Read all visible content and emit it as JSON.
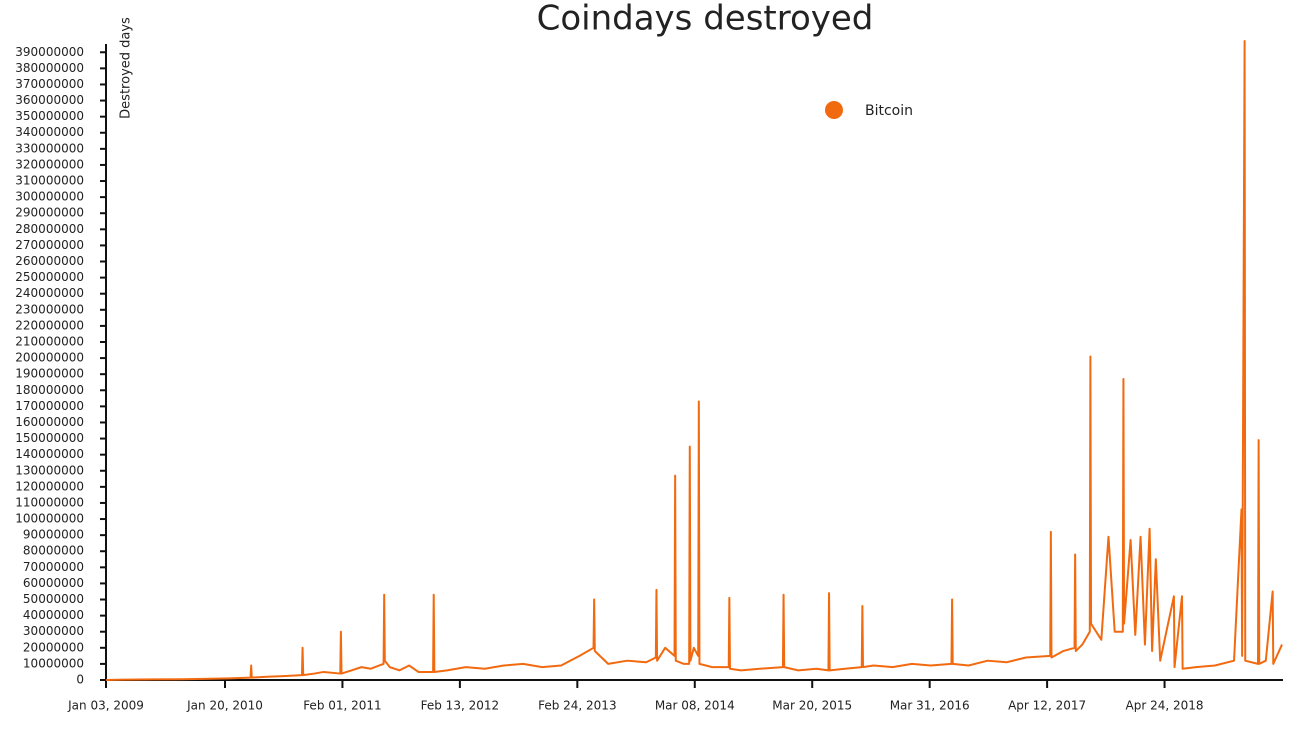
{
  "chart_data": {
    "type": "line",
    "title": "Coindays destroyed",
    "y_label": "Destroyed days",
    "legend": "top-center",
    "xlim": [
      "2009-01-03",
      "2019-05-06"
    ],
    "xticks": [
      {
        "value": "2009-01-03",
        "label": "Jan 03, 2009"
      },
      {
        "value": "2010-01-20",
        "label": "Jan 20, 2010"
      },
      {
        "value": "2011-02-01",
        "label": "Feb 01, 2011"
      },
      {
        "value": "2012-02-13",
        "label": "Feb 13, 2012"
      },
      {
        "value": "2013-02-24",
        "label": "Feb 24, 2013"
      },
      {
        "value": "2014-03-08",
        "label": "Mar 08, 2014"
      },
      {
        "value": "2015-03-20",
        "label": "Mar 20, 2015"
      },
      {
        "value": "2016-03-31",
        "label": "Mar 31, 2016"
      },
      {
        "value": "2017-04-12",
        "label": "Apr 12, 2017"
      },
      {
        "value": "2018-04-24",
        "label": "Apr 24, 2018"
      }
    ],
    "ylim": [
      0,
      397000000
    ],
    "yticks": [
      0,
      10000000,
      20000000,
      30000000,
      40000000,
      50000000,
      60000000,
      70000000,
      80000000,
      90000000,
      100000000,
      110000000,
      120000000,
      130000000,
      140000000,
      150000000,
      160000000,
      170000000,
      180000000,
      190000000,
      200000000,
      210000000,
      220000000,
      230000000,
      240000000,
      250000000,
      260000000,
      270000000,
      280000000,
      290000000,
      300000000,
      310000000,
      320000000,
      330000000,
      340000000,
      350000000,
      360000000,
      370000000,
      380000000,
      390000000
    ],
    "x": [
      "2009-01-03",
      "2009-03-03",
      "2009-06-03",
      "2009-09-03",
      "2009-12-03",
      "2010-02-03",
      "2010-04-12",
      "2010-04-14",
      "2010-04-16",
      "2010-06-03",
      "2010-08-03",
      "2010-09-24",
      "2010-09-26",
      "2010-09-28",
      "2010-11-03",
      "2010-12-03",
      "2011-01-25",
      "2011-01-27",
      "2011-01-29",
      "2011-03-03",
      "2011-04-03",
      "2011-05-03",
      "2011-06-13",
      "2011-06-15",
      "2011-06-17",
      "2011-07-03",
      "2011-08-03",
      "2011-09-03",
      "2011-10-03",
      "2011-11-19",
      "2011-11-21",
      "2011-11-23",
      "2012-01-03",
      "2012-03-03",
      "2012-05-03",
      "2012-07-03",
      "2012-09-03",
      "2012-11-03",
      "2013-01-03",
      "2013-03-03",
      "2013-04-17",
      "2013-04-19",
      "2013-04-21",
      "2013-06-03",
      "2013-08-03",
      "2013-10-03",
      "2013-11-03",
      "2013-11-05",
      "2013-11-07",
      "2013-12-03",
      "2014-01-02",
      "2014-01-04",
      "2014-01-06",
      "2014-02-01",
      "2014-02-18",
      "2014-02-20",
      "2014-02-22",
      "2014-03-05",
      "2014-03-19",
      "2014-03-21",
      "2014-03-23",
      "2014-05-03",
      "2014-06-25",
      "2014-06-27",
      "2014-06-29",
      "2014-08-03",
      "2014-10-03",
      "2014-12-16",
      "2014-12-18",
      "2014-12-20",
      "2015-02-03",
      "2015-04-03",
      "2015-05-11",
      "2015-05-13",
      "2015-05-15",
      "2015-07-03",
      "2015-08-26",
      "2015-08-28",
      "2015-08-30",
      "2015-10-03",
      "2015-12-03",
      "2016-02-03",
      "2016-04-03",
      "2016-06-09",
      "2016-06-11",
      "2016-06-13",
      "2016-08-03",
      "2016-10-03",
      "2016-12-03",
      "2017-02-03",
      "2017-04-22",
      "2017-04-24",
      "2017-04-26",
      "2017-06-03",
      "2017-07-09",
      "2017-07-11",
      "2017-07-13",
      "2017-08-03",
      "2017-08-27",
      "2017-08-29",
      "2017-08-31",
      "2017-10-03",
      "2017-10-26",
      "2017-11-15",
      "2017-12-11",
      "2017-12-13",
      "2017-12-15",
      "2018-01-05",
      "2018-01-20",
      "2018-02-06",
      "2018-02-20",
      "2018-03-07",
      "2018-03-15",
      "2018-03-27",
      "2018-04-10",
      "2018-05-24",
      "2018-05-26",
      "2018-06-19",
      "2018-06-21",
      "2018-08-03",
      "2018-10-03",
      "2018-12-03",
      "2018-12-27",
      "2018-12-29",
      "2019-01-06",
      "2019-01-08",
      "2019-02-18",
      "2019-02-20",
      "2019-02-22",
      "2019-03-15",
      "2019-04-06",
      "2019-04-08",
      "2019-05-06"
    ],
    "series": [
      {
        "name": "Bitcoin",
        "color": "#f26a10",
        "values": [
          0,
          200000,
          400000,
          500000,
          800000,
          1000000,
          1500000,
          9000000,
          1500000,
          2000000,
          2500000,
          3000000,
          20000000,
          3000000,
          4000000,
          5000000,
          4000000,
          30000000,
          4000000,
          6000000,
          8000000,
          7000000,
          10000000,
          53000000,
          12000000,
          8000000,
          6000000,
          9000000,
          5000000,
          5000000,
          53000000,
          5000000,
          6000000,
          8000000,
          7000000,
          9000000,
          10000000,
          8000000,
          9000000,
          15000000,
          20000000,
          50000000,
          18000000,
          10000000,
          12000000,
          11000000,
          14000000,
          56000000,
          12000000,
          20000000,
          15000000,
          127000000,
          12000000,
          10000000,
          10000000,
          145000000,
          12000000,
          20000000,
          15000000,
          173000000,
          10000000,
          8000000,
          8000000,
          51000000,
          7000000,
          6000000,
          7000000,
          8000000,
          53000000,
          8000000,
          6000000,
          7000000,
          6000000,
          54000000,
          6000000,
          7000000,
          8000000,
          46000000,
          8000000,
          9000000,
          8000000,
          10000000,
          9000000,
          10000000,
          50000000,
          10000000,
          9000000,
          12000000,
          11000000,
          14000000,
          15000000,
          92000000,
          14000000,
          18000000,
          20000000,
          78000000,
          18000000,
          22000000,
          30000000,
          201000000,
          35000000,
          25000000,
          89000000,
          30000000,
          30000000,
          187000000,
          35000000,
          87000000,
          28000000,
          89000000,
          22000000,
          94000000,
          18000000,
          75000000,
          12000000,
          52000000,
          8000000,
          52000000,
          7000000,
          8000000,
          9000000,
          12000000,
          106000000,
          15000000,
          397000000,
          12000000,
          10000000,
          149000000,
          10000000,
          12000000,
          55000000,
          10000000,
          22000000
        ]
      }
    ]
  }
}
